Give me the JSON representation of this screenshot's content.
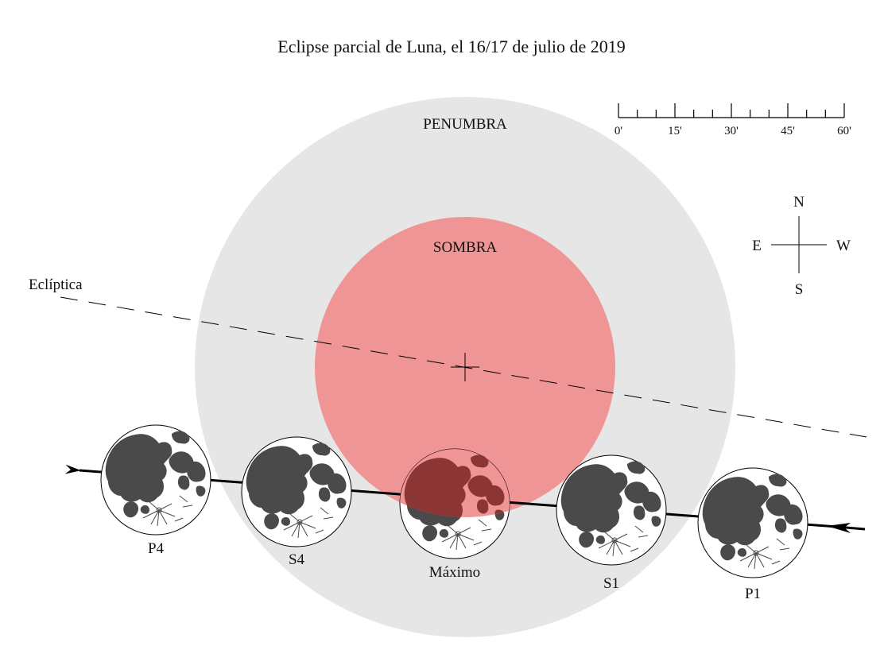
{
  "title": "Eclipse parcial de Luna, el 16/17 de julio de 2019",
  "colors": {
    "background": "#ffffff",
    "penumbra": "#e6e6e6",
    "umbra": "#f09595",
    "moon_disk": "#ffffff",
    "moon_maria": "#4a4a4a",
    "moon_maria_eclipsed": "#8b3535",
    "line": "#000000"
  },
  "labels": {
    "penumbra": "PENUMBRA",
    "umbra": "SOMBRA",
    "ecliptic": "Eclíptica"
  },
  "compass": {
    "north": "N",
    "south": "S",
    "east": "E",
    "west": "W"
  },
  "scale": {
    "ticks": [
      "0'",
      "15'",
      "30'",
      "45'",
      "60'"
    ]
  },
  "moons": [
    {
      "id": "p4",
      "label": "P4",
      "eclipsed": false
    },
    {
      "id": "s4",
      "label": "S4",
      "eclipsed": false
    },
    {
      "id": "maximo",
      "label": "Máximo",
      "eclipsed": true
    },
    {
      "id": "s1",
      "label": "S1",
      "eclipsed": false
    },
    {
      "id": "p1",
      "label": "P1",
      "eclipsed": false
    }
  ],
  "icons": {
    "shadow_center": "crosshair-icon",
    "path_direction": "arrow-left-icon"
  }
}
